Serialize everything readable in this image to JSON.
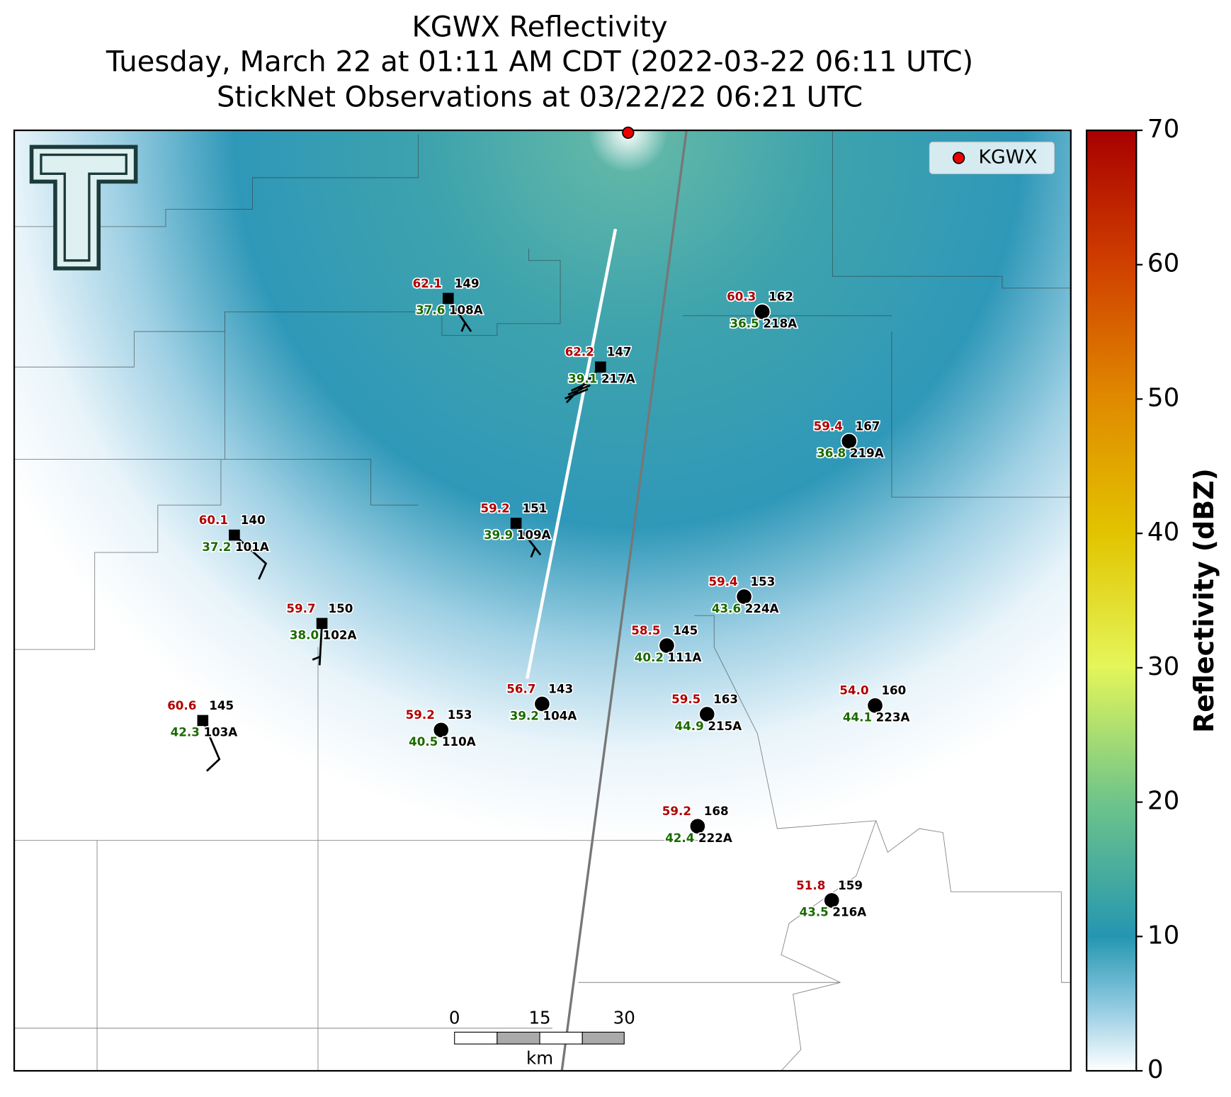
{
  "header": {
    "title": "KGWX Reflectivity",
    "subtitle": "Tuesday, March 22 at 01:11 AM CDT (2022-03-22 06:11 UTC)",
    "observations": "StickNet Observations at 03/22/22 06:21 UTC"
  },
  "legend": {
    "label": "KGWX"
  },
  "colorbar": {
    "label": "Reflectivity (dBZ)",
    "range": [
      0,
      70
    ],
    "ticks": [
      0,
      10,
      20,
      30,
      40,
      50,
      60,
      70
    ]
  },
  "scale_bar": {
    "ticks": [
      "0",
      "15",
      "30"
    ],
    "unit": "km"
  },
  "stations": [
    {
      "id": "108A",
      "temperature": "62.1",
      "dewpoint": "37.6",
      "value": "149"
    },
    {
      "id": "217A",
      "temperature": "62.2",
      "dewpoint": "39.1",
      "value": "147"
    },
    {
      "id": "218A",
      "temperature": "60.3",
      "dewpoint": "36.5",
      "value": "162"
    },
    {
      "id": "219A",
      "temperature": "59.4",
      "dewpoint": "36.8",
      "value": "167"
    },
    {
      "id": "109A",
      "temperature": "59.2",
      "dewpoint": "39.9",
      "value": "151"
    },
    {
      "id": "101A",
      "temperature": "60.1",
      "dewpoint": "37.2",
      "value": "140"
    },
    {
      "id": "224A",
      "temperature": "59.4",
      "dewpoint": "43.6",
      "value": "153"
    },
    {
      "id": "102A",
      "temperature": "59.7",
      "dewpoint": "38.0",
      "value": "150"
    },
    {
      "id": "111A",
      "temperature": "58.5",
      "dewpoint": "40.2",
      "value": "145"
    },
    {
      "id": "104A",
      "temperature": "56.7",
      "dewpoint": "39.2",
      "value": "143"
    },
    {
      "id": "223A",
      "temperature": "54.0",
      "dewpoint": "44.1",
      "value": "160"
    },
    {
      "id": "215A",
      "temperature": "59.5",
      "dewpoint": "44.9",
      "value": "163"
    },
    {
      "id": "103A",
      "temperature": "60.6",
      "dewpoint": "42.3",
      "value": "145"
    },
    {
      "id": "110A",
      "temperature": "59.2",
      "dewpoint": "40.5",
      "value": "153"
    },
    {
      "id": "222A",
      "temperature": "59.2",
      "dewpoint": "42.4",
      "value": "168"
    },
    {
      "id": "216A",
      "temperature": "51.8",
      "dewpoint": "43.5",
      "value": "159"
    }
  ]
}
